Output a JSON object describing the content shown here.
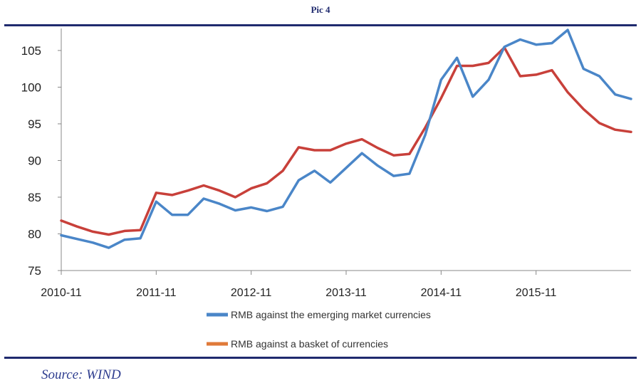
{
  "caption": {
    "title": "Pic 4",
    "source": "Source: WIND"
  },
  "chart_data": {
    "type": "line",
    "title": "",
    "xlabel": "",
    "ylabel": "",
    "ylim": [
      75,
      108
    ],
    "y_ticks": [
      75,
      80,
      85,
      90,
      95,
      100,
      105
    ],
    "x_ticks": [
      "2010-11",
      "2011-11",
      "2012-11",
      "2013-11",
      "2014-11",
      "2015-11"
    ],
    "x_range": [
      "2010-11",
      "2016-11"
    ],
    "grid": false,
    "legend_position": "bottom",
    "x": [
      "2010-11",
      "2011-01",
      "2011-03",
      "2011-05",
      "2011-07",
      "2011-09",
      "2011-11",
      "2012-01",
      "2012-03",
      "2012-05",
      "2012-07",
      "2012-09",
      "2012-11",
      "2013-01",
      "2013-03",
      "2013-05",
      "2013-07",
      "2013-09",
      "2013-11",
      "2014-01",
      "2014-03",
      "2014-05",
      "2014-07",
      "2014-09",
      "2014-11",
      "2015-01",
      "2015-03",
      "2015-05",
      "2015-07",
      "2015-09",
      "2015-11",
      "2016-01",
      "2016-03",
      "2016-05",
      "2016-07",
      "2016-09",
      "2016-11"
    ],
    "series": [
      {
        "name": "RMB against the emerging market currencies",
        "color": "#4a86c8",
        "values": [
          79.8,
          79.3,
          78.8,
          78.1,
          79.2,
          79.4,
          84.4,
          82.6,
          82.6,
          84.8,
          84.1,
          83.2,
          83.6,
          83.1,
          83.7,
          87.3,
          88.6,
          87.0,
          89.0,
          91.0,
          89.3,
          87.9,
          88.2,
          93.5,
          101.0,
          104.0,
          98.7,
          101.0,
          105.5,
          106.5,
          105.8,
          106.0,
          107.8,
          102.5,
          101.5,
          99.0,
          98.4
        ]
      },
      {
        "name": "RMB against a basket of currencies",
        "color": "#c8403a",
        "values": [
          81.8,
          81.0,
          80.3,
          79.9,
          80.4,
          80.5,
          85.6,
          85.3,
          85.9,
          86.6,
          85.9,
          85.0,
          86.2,
          86.9,
          88.6,
          91.8,
          91.4,
          91.4,
          92.3,
          92.9,
          91.7,
          90.7,
          90.9,
          94.5,
          98.5,
          102.9,
          102.9,
          103.3,
          105.4,
          101.5,
          101.7,
          102.3,
          99.3,
          97.0,
          95.1,
          94.2,
          93.9
        ]
      }
    ]
  }
}
